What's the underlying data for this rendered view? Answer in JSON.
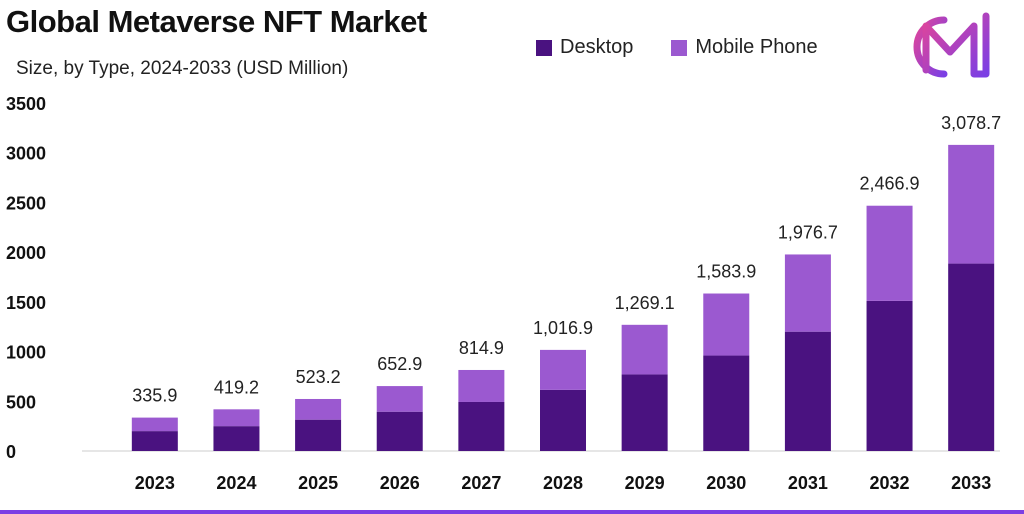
{
  "header": {
    "title": "Global Metaverse NFT Market",
    "subtitle": "Size, by Type, 2024-2033 (USD Million)"
  },
  "colors": {
    "desktop": "#4a1280",
    "mobile": "#9b59d0",
    "axis": "#cccccc",
    "logo_a": "#e0459a",
    "logo_b": "#7b3fe4",
    "bottom_bar": "#7b3fe4"
  },
  "logo": {
    "icon": "brand-m-logo-icon"
  },
  "chart_data": {
    "type": "bar",
    "stacked": true,
    "categories": [
      "2023",
      "2024",
      "2025",
      "2026",
      "2027",
      "2028",
      "2029",
      "2030",
      "2031",
      "2032",
      "2033"
    ],
    "series": [
      {
        "name": "Desktop",
        "values": [
          200,
          250,
          315,
          395,
          493,
          615,
          770,
          960,
          1200,
          1510,
          1885
        ]
      },
      {
        "name": "Mobile Phone",
        "values": [
          135.9,
          169.2,
          208.2,
          257.9,
          321.9,
          401.9,
          499.1,
          623.9,
          776.7,
          956.9,
          1193.7
        ]
      }
    ],
    "totals": [
      "335.9",
      "419.2",
      "523.2",
      "652.9",
      "814.9",
      "1,016.9",
      "1,269.1",
      "1,583.9",
      "1,976.7",
      "2,466.9",
      "3,078.7"
    ],
    "yticks": [
      0,
      500,
      1000,
      1500,
      2000,
      2500,
      3000,
      3500
    ],
    "ylim": [
      0,
      3500
    ],
    "xlabel": "",
    "ylabel": "",
    "legend_position": "top"
  }
}
